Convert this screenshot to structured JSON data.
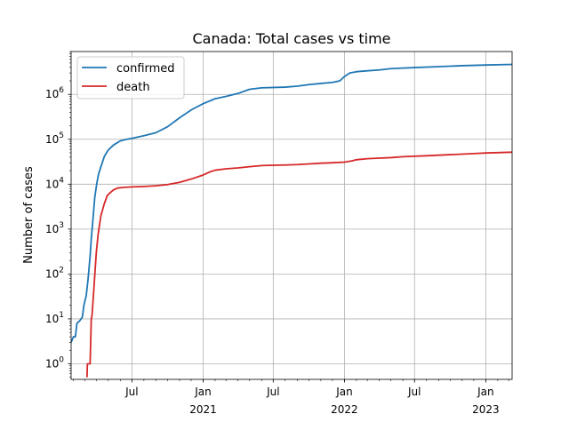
{
  "chart_data": {
    "type": "line",
    "title": "Canada: Total cases vs time",
    "xlabel": "",
    "ylabel": "Number of cases",
    "yscale": "log",
    "ylim": [
      0.45,
      9000000
    ],
    "xlim": [
      "2020-01-26",
      "2023-03-10"
    ],
    "grid": true,
    "legend_position": "top-left",
    "x_ticks": [
      {
        "date": "2020-07-01",
        "label": "Jul",
        "year": ""
      },
      {
        "date": "2021-01-01",
        "label": "Jan",
        "year": "2021"
      },
      {
        "date": "2021-07-01",
        "label": "Jul",
        "year": ""
      },
      {
        "date": "2022-01-01",
        "label": "Jan",
        "year": "2022"
      },
      {
        "date": "2022-07-01",
        "label": "Jul",
        "year": ""
      },
      {
        "date": "2023-01-01",
        "label": "Jan",
        "year": "2023"
      }
    ],
    "y_ticks": [
      {
        "value": 1,
        "base": "10",
        "exp": "0"
      },
      {
        "value": 10,
        "base": "10",
        "exp": "1"
      },
      {
        "value": 100,
        "base": "10",
        "exp": "2"
      },
      {
        "value": 1000,
        "base": "10",
        "exp": "3"
      },
      {
        "value": 10000,
        "base": "10",
        "exp": "4"
      },
      {
        "value": 100000,
        "base": "10",
        "exp": "5"
      },
      {
        "value": 1000000,
        "base": "10",
        "exp": "6"
      }
    ],
    "series": [
      {
        "name": "confirmed",
        "color": "#1f77b4",
        "points": [
          [
            "2020-01-26",
            3
          ],
          [
            "2020-02-01",
            4
          ],
          [
            "2020-02-06",
            4
          ],
          [
            "2020-02-10",
            8
          ],
          [
            "2020-02-17",
            9
          ],
          [
            "2020-02-24",
            11
          ],
          [
            "2020-02-28",
            20
          ],
          [
            "2020-03-05",
            33
          ],
          [
            "2020-03-10",
            80
          ],
          [
            "2020-03-15",
            250
          ],
          [
            "2020-03-18",
            600
          ],
          [
            "2020-03-22",
            1500
          ],
          [
            "2020-03-27",
            5000
          ],
          [
            "2020-04-01",
            10000
          ],
          [
            "2020-04-06",
            17000
          ],
          [
            "2020-04-13",
            26000
          ],
          [
            "2020-04-21",
            42000
          ],
          [
            "2020-05-01",
            58000
          ],
          [
            "2020-05-15",
            75000
          ],
          [
            "2020-06-01",
            92000
          ],
          [
            "2020-06-15",
            99000
          ],
          [
            "2020-07-01",
            105000
          ],
          [
            "2020-08-01",
            120000
          ],
          [
            "2020-09-01",
            140000
          ],
          [
            "2020-10-01",
            190000
          ],
          [
            "2020-11-01",
            300000
          ],
          [
            "2020-12-01",
            450000
          ],
          [
            "2021-01-01",
            620000
          ],
          [
            "2021-02-01",
            800000
          ],
          [
            "2021-03-01",
            900000
          ],
          [
            "2021-04-01",
            1050000
          ],
          [
            "2021-05-01",
            1300000
          ],
          [
            "2021-06-01",
            1400000
          ],
          [
            "2021-08-01",
            1450000
          ],
          [
            "2021-09-01",
            1520000
          ],
          [
            "2021-10-01",
            1650000
          ],
          [
            "2021-11-01",
            1750000
          ],
          [
            "2021-12-01",
            1850000
          ],
          [
            "2021-12-20",
            2000000
          ],
          [
            "2022-01-01",
            2500000
          ],
          [
            "2022-01-15",
            3000000
          ],
          [
            "2022-02-01",
            3200000
          ],
          [
            "2022-03-01",
            3350000
          ],
          [
            "2022-04-01",
            3500000
          ],
          [
            "2022-05-01",
            3750000
          ],
          [
            "2022-06-01",
            3850000
          ],
          [
            "2022-07-01",
            3950000
          ],
          [
            "2022-09-01",
            4150000
          ],
          [
            "2022-11-01",
            4350000
          ],
          [
            "2023-01-01",
            4500000
          ],
          [
            "2023-03-10",
            4650000
          ]
        ]
      },
      {
        "name": "death",
        "color": "#d62728",
        "points": [
          [
            "2020-03-07",
            0.5
          ],
          [
            "2020-03-08",
            1
          ],
          [
            "2020-03-15",
            1
          ],
          [
            "2020-03-16",
            2
          ],
          [
            "2020-03-18",
            10
          ],
          [
            "2020-03-20",
            12
          ],
          [
            "2020-03-25",
            50
          ],
          [
            "2020-03-31",
            300
          ],
          [
            "2020-04-05",
            800
          ],
          [
            "2020-04-12",
            2000
          ],
          [
            "2020-04-20",
            3500
          ],
          [
            "2020-04-28",
            5500
          ],
          [
            "2020-05-06",
            6500
          ],
          [
            "2020-05-15",
            7500
          ],
          [
            "2020-05-25",
            8200
          ],
          [
            "2020-06-10",
            8500
          ],
          [
            "2020-07-01",
            8700
          ],
          [
            "2020-08-01",
            8900
          ],
          [
            "2020-09-01",
            9200
          ],
          [
            "2020-10-01",
            9800
          ],
          [
            "2020-11-01",
            11000
          ],
          [
            "2020-12-01",
            13000
          ],
          [
            "2021-01-01",
            16000
          ],
          [
            "2021-01-20",
            19000
          ],
          [
            "2021-02-01",
            20500
          ],
          [
            "2021-03-01",
            22000
          ],
          [
            "2021-04-01",
            23000
          ],
          [
            "2021-05-01",
            24500
          ],
          [
            "2021-06-01",
            26000
          ],
          [
            "2021-07-01",
            26400
          ],
          [
            "2021-08-01",
            26700
          ],
          [
            "2021-09-01",
            27300
          ],
          [
            "2021-10-01",
            28300
          ],
          [
            "2021-11-01",
            29300
          ],
          [
            "2021-12-01",
            30000
          ],
          [
            "2022-01-01",
            31000
          ],
          [
            "2022-01-20",
            33000
          ],
          [
            "2022-02-01",
            35000
          ],
          [
            "2022-03-01",
            37000
          ],
          [
            "2022-04-01",
            38000
          ],
          [
            "2022-05-01",
            39000
          ],
          [
            "2022-06-01",
            41000
          ],
          [
            "2022-08-01",
            43000
          ],
          [
            "2022-10-01",
            45500
          ],
          [
            "2022-12-01",
            48000
          ],
          [
            "2023-01-01",
            49500
          ],
          [
            "2023-03-10",
            51500
          ]
        ]
      }
    ]
  }
}
